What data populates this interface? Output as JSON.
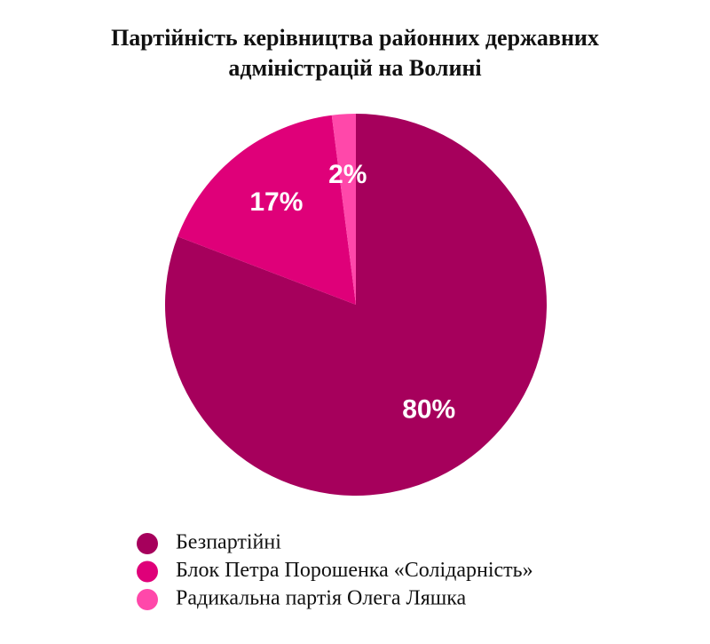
{
  "chart_data": {
    "type": "pie",
    "title": "Партійність керівництва районних державних адміністрацій на Волині",
    "categories": [
      "Безпартійні",
      "Блок Петра Порошенка «Солідарність»",
      "Радикальна партія Олега Ляшка"
    ],
    "values": [
      80,
      17,
      2
    ],
    "value_labels": [
      "80%",
      "17%",
      "2%"
    ],
    "colors": [
      "#a6005c",
      "#df0079",
      "#ff48aa"
    ]
  }
}
